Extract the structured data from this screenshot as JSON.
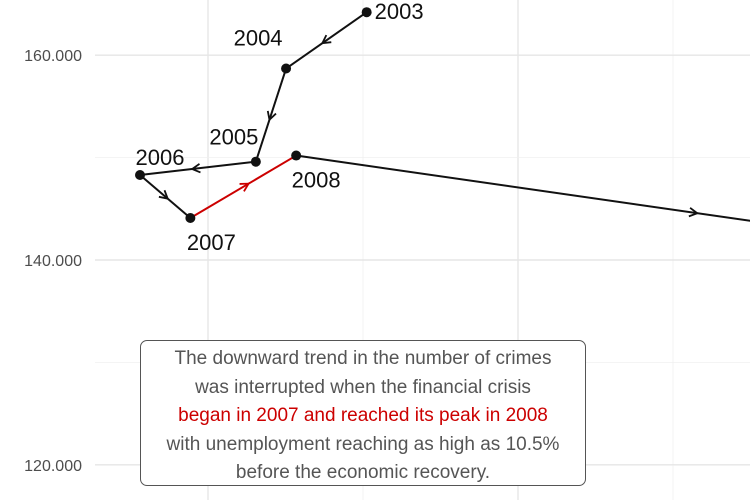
{
  "chart_data": {
    "type": "line",
    "xlabel": "",
    "ylabel": "",
    "ylim": [
      117500,
      170000
    ],
    "y_ticks": [
      120000,
      140000,
      160000
    ],
    "y_tick_labels": [
      "120.000",
      "140.000",
      "160.000"
    ],
    "grid": true,
    "points": [
      {
        "year": "2003",
        "x": 9.1,
        "y": 164200
      },
      {
        "year": "2004",
        "x": 7.5,
        "y": 158700
      },
      {
        "year": "2005",
        "x": 6.9,
        "y": 149600
      },
      {
        "year": "2006",
        "x": 4.6,
        "y": 148300
      },
      {
        "year": "2007",
        "x": 5.6,
        "y": 144100
      },
      {
        "year": "2008",
        "x": 7.7,
        "y": 150200
      },
      {
        "year": "",
        "x": 14.7,
        "y": 143800
      }
    ],
    "highlight": {
      "from": "2007",
      "to": "2008",
      "color": "#cc0000"
    },
    "annotation": {
      "lines": [
        "The downward trend in the number of crimes",
        "was interrupted when the financial crisis",
        "began in 2007 and reached its peak in 2008",
        "with unemployment reaching as high as 10.5%",
        "before the economic recovery."
      ],
      "highlight_line": 2
    }
  }
}
